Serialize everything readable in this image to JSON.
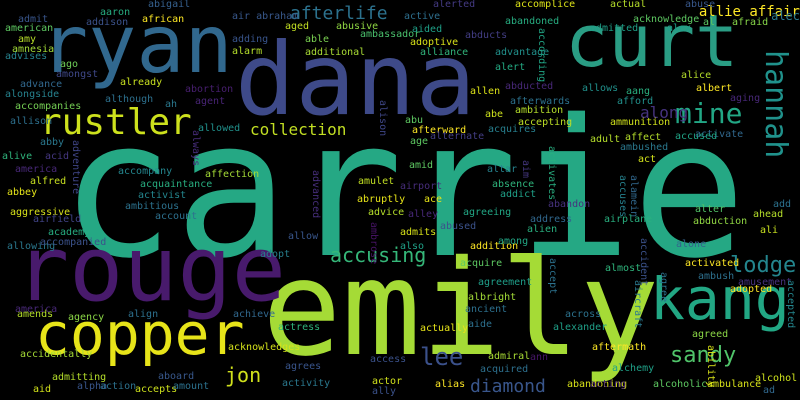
{
  "background": "#000000",
  "words": [
    {
      "text": "carrie",
      "color": "#25a884"
    },
    {
      "text": "emily",
      "color": "#a5db36"
    },
    {
      "text": "dana",
      "color": "#3e4a89"
    },
    {
      "text": "rouge",
      "color": "#481a6c"
    },
    {
      "text": "ryan",
      "color": "#31688e"
    },
    {
      "text": "curt",
      "color": "#2a9d84"
    },
    {
      "text": "copper",
      "color": "#e7e419"
    },
    {
      "text": "kang",
      "color": "#22a784"
    },
    {
      "text": "rustler",
      "color": "#cde11d"
    },
    {
      "text": "hannah",
      "color": "#20928c"
    },
    {
      "text": "mine",
      "color": "#22a785"
    },
    {
      "text": "lodge",
      "color": "#24868e"
    },
    {
      "text": "sandy",
      "color": "#50c46a"
    },
    {
      "text": "lee",
      "color": "#3b518b"
    },
    {
      "text": "jon",
      "color": "#d0e11c"
    },
    {
      "text": "accusing",
      "color": "#35b779"
    },
    {
      "text": "afterlife",
      "color": "#2c728e"
    },
    {
      "text": "collection",
      "color": "#c2df23"
    },
    {
      "text": "diamond",
      "color": "#39568c"
    },
    {
      "text": "along",
      "color": "#46337f"
    },
    {
      "text": "allie affair",
      "color": "#fde725"
    },
    {
      "text": "alec",
      "color": "#2a788e"
    },
    {
      "text": "aaron",
      "color": "#27ad81"
    },
    {
      "text": "abigail",
      "color": "#35608d"
    },
    {
      "text": "african",
      "color": "#fde725"
    },
    {
      "text": "air abraham",
      "color": "#38588c"
    },
    {
      "text": "active",
      "color": "#2e6f8e"
    },
    {
      "text": "alerted",
      "color": "#443a83"
    },
    {
      "text": "accomplice",
      "color": "#dde318"
    },
    {
      "text": "actual",
      "color": "#b5de2b"
    },
    {
      "text": "abuse",
      "color": "#38588c"
    },
    {
      "text": "acknowledge",
      "color": "#5ec962"
    },
    {
      "text": "al",
      "color": "#5ec962"
    },
    {
      "text": "afraid",
      "color": "#86d549"
    },
    {
      "text": "admit",
      "color": "#39568c"
    },
    {
      "text": "addison",
      "color": "#3b528b"
    },
    {
      "text": "american",
      "color": "#5ec962"
    },
    {
      "text": "amy",
      "color": "#b8de29"
    },
    {
      "text": "amnesia",
      "color": "#a2da37"
    },
    {
      "text": "adding",
      "color": "#39558c"
    },
    {
      "text": "alarm",
      "color": "#b5de2b"
    },
    {
      "text": "aged",
      "color": "#c2df23"
    },
    {
      "text": "able",
      "color": "#7ad151"
    },
    {
      "text": "abusive",
      "color": "#90d743"
    },
    {
      "text": "ambassador",
      "color": "#4ac16d"
    },
    {
      "text": "abandoned",
      "color": "#27ad81"
    },
    {
      "text": "aided",
      "color": "#1fa188"
    },
    {
      "text": "admitted",
      "color": "#1f9f88"
    },
    {
      "text": "alex",
      "color": "#1f9e89"
    },
    {
      "text": "abducts",
      "color": "#433e85"
    },
    {
      "text": "adoptive",
      "color": "#d8e219"
    },
    {
      "text": "alliance",
      "color": "#31b57b"
    },
    {
      "text": "additional",
      "color": "#a8db34"
    },
    {
      "text": "advantage",
      "color": "#21918c"
    },
    {
      "text": "according",
      "color": "#21a585"
    },
    {
      "text": "alert",
      "color": "#24aa83"
    },
    {
      "text": "alice",
      "color": "#b5de2b"
    },
    {
      "text": "advises",
      "color": "#26828e"
    },
    {
      "text": "ago",
      "color": "#6ece58"
    },
    {
      "text": "amongst",
      "color": "#3f4889"
    },
    {
      "text": "advance",
      "color": "#31688e"
    },
    {
      "text": "alongside",
      "color": "#26828e"
    },
    {
      "text": "accompanies",
      "color": "#75d054"
    },
    {
      "text": "already",
      "color": "#c8e020"
    },
    {
      "text": "although",
      "color": "#2d708e"
    },
    {
      "text": "abortion",
      "color": "#481f70"
    },
    {
      "text": "ah",
      "color": "#2a788e"
    },
    {
      "text": "agent",
      "color": "#482475"
    },
    {
      "text": "abducted",
      "color": "#482878"
    },
    {
      "text": "allen",
      "color": "#dde318"
    },
    {
      "text": "afterwards",
      "color": "#2c728e"
    },
    {
      "text": "ambition",
      "color": "#b5de2b"
    },
    {
      "text": "allows",
      "color": "#21918c"
    },
    {
      "text": "aang",
      "color": "#29af7f"
    },
    {
      "text": "afford",
      "color": "#21918c"
    },
    {
      "text": "albert",
      "color": "#fde725"
    },
    {
      "text": "aging",
      "color": "#482878"
    },
    {
      "text": "allison",
      "color": "#2d708e"
    },
    {
      "text": "allowed",
      "color": "#21918c"
    },
    {
      "text": "alison",
      "color": "#3f4788"
    },
    {
      "text": "abu",
      "color": "#5ec962"
    },
    {
      "text": "afterward",
      "color": "#fde725"
    },
    {
      "text": "alternate",
      "color": "#433e85"
    },
    {
      "text": "abe",
      "color": "#cde11d"
    },
    {
      "text": "acquires",
      "color": "#277f8e"
    },
    {
      "text": "accepting",
      "color": "#bddf26"
    },
    {
      "text": "ammunition",
      "color": "#d0e11c"
    },
    {
      "text": "activate",
      "color": "#31688e"
    },
    {
      "text": "abby",
      "color": "#2a788e"
    },
    {
      "text": "acid",
      "color": "#453781"
    },
    {
      "text": "always",
      "color": "#472d7b"
    },
    {
      "text": "age",
      "color": "#5ec962"
    },
    {
      "text": "adult",
      "color": "#b5de2b"
    },
    {
      "text": "affect",
      "color": "#b5de2b"
    },
    {
      "text": "accused",
      "color": "#20a486"
    },
    {
      "text": "ambushed",
      "color": "#2a788e"
    },
    {
      "text": "alive",
      "color": "#2fb47c"
    },
    {
      "text": "america",
      "color": "#482878"
    },
    {
      "text": "alfred",
      "color": "#c8e020"
    },
    {
      "text": "abbey",
      "color": "#e5e419"
    },
    {
      "text": "adventure",
      "color": "#404688"
    },
    {
      "text": "accompany",
      "color": "#24868e"
    },
    {
      "text": "acquaintance",
      "color": "#28ae80"
    },
    {
      "text": "activist",
      "color": "#24868e"
    },
    {
      "text": "ambitious",
      "color": "#2c728e"
    },
    {
      "text": "affection",
      "color": "#a5db36"
    },
    {
      "text": "amid",
      "color": "#5ec962"
    },
    {
      "text": "amulet",
      "color": "#c2df23"
    },
    {
      "text": "airport",
      "color": "#472d7b"
    },
    {
      "text": "altar",
      "color": "#26828e"
    },
    {
      "text": "aim",
      "color": "#453781"
    },
    {
      "text": "absence",
      "color": "#2fb47c"
    },
    {
      "text": "addict",
      "color": "#1fa088"
    },
    {
      "text": "activates",
      "color": "#28ae80"
    },
    {
      "text": "act",
      "color": "#d2e21b"
    },
    {
      "text": "accuses",
      "color": "#26828e"
    },
    {
      "text": "alamein",
      "color": "#31688e"
    },
    {
      "text": "aggressive",
      "color": "#d8e219"
    },
    {
      "text": "airfield",
      "color": "#414487"
    },
    {
      "text": "account",
      "color": "#2d708e"
    },
    {
      "text": "advanced",
      "color": "#472f7d"
    },
    {
      "text": "abruptly",
      "color": "#e7e419"
    },
    {
      "text": "advice",
      "color": "#b5de2b"
    },
    {
      "text": "alley",
      "color": "#482878"
    },
    {
      "text": "ace",
      "color": "#e7e419"
    },
    {
      "text": "agreeing",
      "color": "#22a785"
    },
    {
      "text": "abandon",
      "color": "#46327e"
    },
    {
      "text": "address",
      "color": "#31688e"
    },
    {
      "text": "airplane",
      "color": "#29af7f"
    },
    {
      "text": "alter",
      "color": "#52c569"
    },
    {
      "text": "abduction",
      "color": "#90d743"
    },
    {
      "text": "add",
      "color": "#2c728e"
    },
    {
      "text": "ahead",
      "color": "#b5de2b"
    },
    {
      "text": "academy",
      "color": "#27ad81"
    },
    {
      "text": "admits",
      "color": "#d8e219"
    },
    {
      "text": "abused",
      "color": "#3b528b"
    },
    {
      "text": "alien",
      "color": "#29af7f"
    },
    {
      "text": "allow",
      "color": "#39568c"
    },
    {
      "text": "ambrose",
      "color": "#481467"
    },
    {
      "text": "also",
      "color": "#1fa188"
    },
    {
      "text": "addition",
      "color": "#fde725"
    },
    {
      "text": "among",
      "color": "#22a785"
    },
    {
      "text": "alone",
      "color": "#33638d"
    },
    {
      "text": "ali",
      "color": "#c8e020"
    },
    {
      "text": "allowing",
      "color": "#2a788e"
    },
    {
      "text": "accompanied",
      "color": "#3b528b"
    },
    {
      "text": "adopt",
      "color": "#27808e"
    },
    {
      "text": "acquire",
      "color": "#5ec962"
    },
    {
      "text": "almost",
      "color": "#2fb47c"
    },
    {
      "text": "activated",
      "color": "#fde725"
    },
    {
      "text": "adopted",
      "color": "#fde725"
    },
    {
      "text": "ambush",
      "color": "#2d708e"
    },
    {
      "text": "accident",
      "color": "#3b528b"
    },
    {
      "text": "amusement",
      "color": "#46327e"
    },
    {
      "text": "agreement",
      "color": "#1f9e89"
    },
    {
      "text": "accept",
      "color": "#2c728e"
    },
    {
      "text": "agree",
      "color": "#2c728e"
    },
    {
      "text": "albright",
      "color": "#a2da37"
    },
    {
      "text": "ancient",
      "color": "#2d708e"
    },
    {
      "text": "across",
      "color": "#2c728e"
    },
    {
      "text": "aircraft",
      "color": "#2a788e"
    },
    {
      "text": "accepted",
      "color": "#24868e"
    },
    {
      "text": "amends",
      "color": "#b5de2b"
    },
    {
      "text": "agency",
      "color": "#8bd646"
    },
    {
      "text": "align",
      "color": "#2d708e"
    },
    {
      "text": "achieve",
      "color": "#31688e"
    },
    {
      "text": "aide",
      "color": "#2d708e"
    },
    {
      "text": "actually",
      "color": "#e7e419"
    },
    {
      "text": "alexander",
      "color": "#1f9f88"
    },
    {
      "text": "agreed",
      "color": "#8bd646"
    },
    {
      "text": "acknowledges",
      "color": "#d5e21a"
    },
    {
      "text": "aftermath",
      "color": "#fde725"
    },
    {
      "text": "actress",
      "color": "#2fb47c"
    },
    {
      "text": "access",
      "color": "#3b528b"
    },
    {
      "text": "admiral",
      "color": "#a8db34"
    },
    {
      "text": "ann",
      "color": "#481769"
    },
    {
      "text": "america",
      "color": "#482878"
    },
    {
      "text": "accidentally",
      "color": "#a5db36"
    },
    {
      "text": "agrees",
      "color": "#39558c"
    },
    {
      "text": "acquired",
      "color": "#2d708e"
    },
    {
      "text": "alchemy",
      "color": "#1fa188"
    },
    {
      "text": "ability",
      "color": "#d8e219"
    },
    {
      "text": "alcohol",
      "color": "#cde11d"
    },
    {
      "text": "aboard",
      "color": "#38588c"
    },
    {
      "text": "admitting",
      "color": "#b5de2b"
    },
    {
      "text": "activity",
      "color": "#2a788e"
    },
    {
      "text": "actor",
      "color": "#d0e11c"
    },
    {
      "text": "alias",
      "color": "#fde725"
    },
    {
      "text": "ad",
      "color": "#31688e"
    },
    {
      "text": "aid",
      "color": "#d2e21b"
    },
    {
      "text": "alpha",
      "color": "#39568c"
    },
    {
      "text": "action",
      "color": "#2c728e"
    },
    {
      "text": "accepts",
      "color": "#cde11d"
    },
    {
      "text": "amount",
      "color": "#2c728e"
    },
    {
      "text": "ally",
      "color": "#3b528b"
    },
    {
      "text": "abandoning",
      "color": "#d8e219"
    },
    {
      "text": "acting",
      "color": "#482878"
    },
    {
      "text": "alcoholic",
      "color": "#5ec962"
    },
    {
      "text": "ambulance",
      "color": "#d8e219"
    }
  ]
}
